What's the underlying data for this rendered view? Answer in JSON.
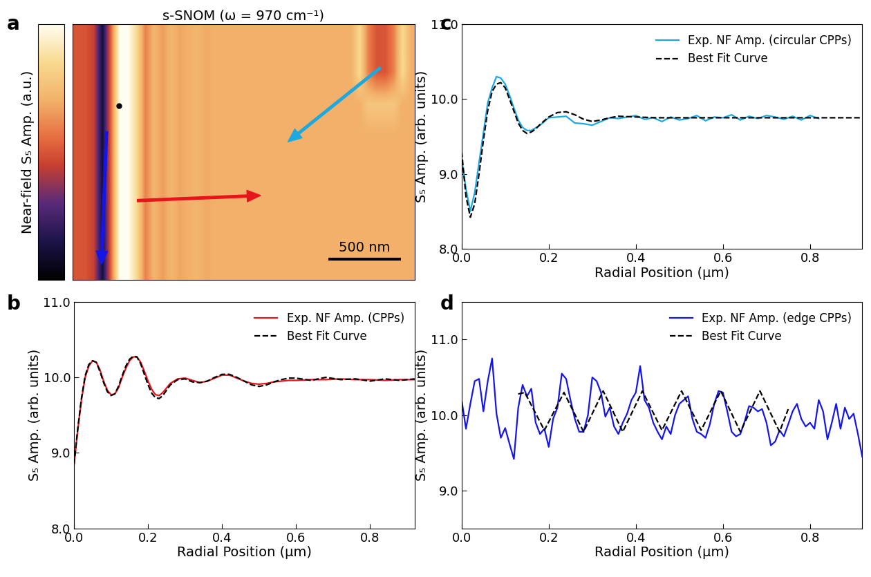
{
  "chart_data": [
    {
      "type": "heatmap",
      "panel": "a",
      "title": "s-SNOM (ω = 970 cm⁻¹)",
      "colorbar_label": "Near-field S₅ Amp. (a.u.)",
      "colorbar_range": [
        0,
        1
      ],
      "xlim": [
        0,
        2360
      ],
      "ylim": [
        1760,
        0
      ],
      "tick_labels": false,
      "scale_bar": {
        "length": 500,
        "label": "500 nm"
      },
      "values": [
        [
          0.5,
          0.5,
          0.45,
          0.12,
          0.55,
          1.0,
          1.0,
          0.85,
          0.6,
          0.72,
          0.66,
          0.72,
          0.68,
          0.7,
          0.72,
          0.69,
          0.7,
          0.7,
          0.7,
          0.7,
          0.7,
          0.7,
          0.7,
          0.7,
          0.7,
          0.7,
          0.7,
          0.7,
          0.7,
          0.7,
          0.7,
          0.7,
          0.7,
          0.85,
          0.6,
          0.5,
          0.5,
          0.6,
          0.85,
          0.7
        ],
        [
          0.5,
          0.5,
          0.45,
          0.12,
          0.55,
          1.0,
          1.0,
          0.85,
          0.6,
          0.72,
          0.66,
          0.72,
          0.68,
          0.7,
          0.72,
          0.69,
          0.7,
          0.7,
          0.7,
          0.7,
          0.7,
          0.7,
          0.7,
          0.7,
          0.7,
          0.7,
          0.7,
          0.7,
          0.7,
          0.7,
          0.7,
          0.7,
          0.7,
          0.85,
          0.6,
          0.5,
          0.5,
          0.6,
          0.85,
          0.7
        ],
        [
          0.5,
          0.5,
          0.45,
          0.12,
          0.55,
          1.0,
          1.0,
          0.85,
          0.6,
          0.72,
          0.66,
          0.72,
          0.68,
          0.7,
          0.72,
          0.69,
          0.7,
          0.7,
          0.7,
          0.7,
          0.7,
          0.7,
          0.7,
          0.7,
          0.7,
          0.7,
          0.7,
          0.7,
          0.7,
          0.7,
          0.7,
          0.7,
          0.7,
          0.7,
          0.78,
          0.78,
          0.78,
          0.78,
          0.7,
          0.7
        ],
        [
          0.5,
          0.5,
          0.45,
          0.12,
          0.55,
          1.0,
          1.0,
          0.85,
          0.6,
          0.72,
          0.66,
          0.72,
          0.68,
          0.7,
          0.72,
          0.69,
          0.7,
          0.7,
          0.7,
          0.7,
          0.7,
          0.7,
          0.7,
          0.7,
          0.7,
          0.7,
          0.7,
          0.7,
          0.7,
          0.7,
          0.7,
          0.7,
          0.7,
          0.7,
          0.7,
          0.7,
          0.7,
          0.7,
          0.7,
          0.7
        ],
        [
          0.5,
          0.5,
          0.45,
          0.12,
          0.55,
          1.0,
          1.0,
          0.85,
          0.6,
          0.72,
          0.66,
          0.72,
          0.68,
          0.7,
          0.72,
          0.69,
          0.7,
          0.7,
          0.7,
          0.7,
          0.7,
          0.7,
          0.7,
          0.7,
          0.7,
          0.7,
          0.7,
          0.7,
          0.7,
          0.7,
          0.7,
          0.7,
          0.7,
          0.7,
          0.7,
          0.7,
          0.7,
          0.7,
          0.7,
          0.7
        ],
        [
          0.5,
          0.5,
          0.45,
          0.12,
          0.55,
          1.0,
          1.0,
          0.85,
          0.6,
          0.72,
          0.66,
          0.72,
          0.68,
          0.7,
          0.72,
          0.69,
          0.7,
          0.7,
          0.7,
          0.7,
          0.7,
          0.7,
          0.7,
          0.7,
          0.7,
          0.7,
          0.7,
          0.7,
          0.7,
          0.7,
          0.7,
          0.7,
          0.7,
          0.7,
          0.7,
          0.7,
          0.7,
          0.7,
          0.7,
          0.7
        ],
        [
          0.5,
          0.5,
          0.45,
          0.12,
          0.55,
          1.0,
          1.0,
          0.85,
          0.6,
          0.72,
          0.66,
          0.72,
          0.68,
          0.7,
          0.72,
          0.69,
          0.7,
          0.7,
          0.7,
          0.7,
          0.7,
          0.7,
          0.7,
          0.7,
          0.7,
          0.7,
          0.7,
          0.7,
          0.7,
          0.7,
          0.7,
          0.7,
          0.7,
          0.7,
          0.7,
          0.7,
          0.7,
          0.7,
          0.7,
          0.7
        ],
        [
          0.5,
          0.5,
          0.45,
          0.12,
          0.55,
          1.0,
          1.0,
          0.85,
          0.6,
          0.72,
          0.66,
          0.72,
          0.68,
          0.7,
          0.72,
          0.69,
          0.7,
          0.7,
          0.7,
          0.7,
          0.7,
          0.7,
          0.7,
          0.7,
          0.7,
          0.7,
          0.7,
          0.7,
          0.7,
          0.7,
          0.7,
          0.7,
          0.7,
          0.7,
          0.7,
          0.7,
          0.7,
          0.7,
          0.7,
          0.7
        ]
      ]
    },
    {
      "type": "line",
      "panel": "b",
      "xlabel": "Radial Position (µm)",
      "ylabel": "S₅ Amp. (arb. units)",
      "xlim": [
        0,
        0.92
      ],
      "ylim": [
        8.0,
        11.0
      ],
      "xticks": [
        0.0,
        0.2,
        0.4,
        0.6,
        0.8
      ],
      "yticks": [
        8.0,
        9.0,
        10.0,
        11.0
      ],
      "legend": "upper right",
      "series": [
        {
          "name": "Exp. NF Amp. (CPPs)",
          "color": "#e8141c",
          "line_style": "solid",
          "x": [
            0.0,
            0.01,
            0.02,
            0.03,
            0.04,
            0.05,
            0.06,
            0.07,
            0.08,
            0.09,
            0.1,
            0.11,
            0.12,
            0.13,
            0.14,
            0.15,
            0.16,
            0.17,
            0.18,
            0.19,
            0.2,
            0.21,
            0.22,
            0.23,
            0.24,
            0.25,
            0.26,
            0.28,
            0.3,
            0.32,
            0.34,
            0.36,
            0.38,
            0.4,
            0.42,
            0.44,
            0.46,
            0.48,
            0.5,
            0.52,
            0.54,
            0.56,
            0.58,
            0.6,
            0.64,
            0.68,
            0.72,
            0.76,
            0.8,
            0.84,
            0.88,
            0.92
          ],
          "values": [
            8.85,
            9.3,
            9.7,
            10.0,
            10.15,
            10.22,
            10.2,
            10.1,
            9.95,
            9.83,
            9.77,
            9.78,
            9.86,
            10.0,
            10.12,
            10.22,
            10.27,
            10.27,
            10.2,
            10.08,
            9.95,
            9.84,
            9.77,
            9.76,
            9.8,
            9.86,
            9.92,
            9.98,
            9.99,
            9.96,
            9.93,
            9.95,
            9.99,
            10.03,
            10.03,
            9.99,
            9.95,
            9.92,
            9.91,
            9.92,
            9.94,
            9.95,
            9.96,
            9.96,
            9.97,
            9.97,
            9.98,
            9.97,
            9.97,
            9.96,
            9.97,
            9.97
          ]
        },
        {
          "name": "Best Fit Curve",
          "color": "#000000",
          "line_style": "dashed",
          "x": [
            0.0,
            0.01,
            0.02,
            0.03,
            0.04,
            0.05,
            0.06,
            0.07,
            0.08,
            0.09,
            0.1,
            0.11,
            0.12,
            0.13,
            0.14,
            0.15,
            0.16,
            0.17,
            0.18,
            0.19,
            0.2,
            0.21,
            0.22,
            0.23,
            0.24,
            0.25,
            0.26,
            0.28,
            0.3,
            0.32,
            0.34,
            0.36,
            0.38,
            0.4,
            0.42,
            0.44,
            0.46,
            0.48,
            0.5,
            0.52,
            0.54,
            0.56,
            0.58,
            0.6,
            0.64,
            0.68,
            0.72,
            0.76,
            0.8,
            0.84,
            0.88,
            0.92
          ],
          "values": [
            8.85,
            9.32,
            9.72,
            10.02,
            10.17,
            10.22,
            10.2,
            10.08,
            9.93,
            9.81,
            9.76,
            9.78,
            9.88,
            10.02,
            10.15,
            10.24,
            10.28,
            10.27,
            10.18,
            10.04,
            9.9,
            9.79,
            9.73,
            9.72,
            9.76,
            9.83,
            9.9,
            9.97,
            9.98,
            9.94,
            9.93,
            9.95,
            10.0,
            10.04,
            10.04,
            10.0,
            9.95,
            9.9,
            9.88,
            9.9,
            9.94,
            9.97,
            9.99,
            9.99,
            9.96,
            10.0,
            9.97,
            9.98,
            9.95,
            9.98,
            9.96,
            9.98
          ]
        }
      ]
    },
    {
      "type": "line",
      "panel": "c",
      "xlabel": "Radial Position (µm)",
      "ylabel": "S₅ Amp. (arb. units)",
      "xlim": [
        0,
        0.92
      ],
      "ylim": [
        8.0,
        11.0
      ],
      "xticks": [
        0.0,
        0.2,
        0.4,
        0.6,
        0.8
      ],
      "yticks": [
        8.0,
        9.0,
        10.0,
        11.0
      ],
      "legend": "upper right",
      "series": [
        {
          "name": "Exp. NF Amp. (circular CPPs)",
          "color": "#1ba9e0",
          "line_style": "solid",
          "x": [
            0.0,
            0.01,
            0.02,
            0.03,
            0.04,
            0.05,
            0.06,
            0.07,
            0.08,
            0.09,
            0.1,
            0.11,
            0.12,
            0.13,
            0.14,
            0.15,
            0.16,
            0.18,
            0.2,
            0.22,
            0.24,
            0.26,
            0.28,
            0.3,
            0.32,
            0.34,
            0.36,
            0.38,
            0.4,
            0.42,
            0.44,
            0.46,
            0.48,
            0.5,
            0.52,
            0.54,
            0.56,
            0.58,
            0.6,
            0.62,
            0.64,
            0.66,
            0.68,
            0.7,
            0.72,
            0.74,
            0.76,
            0.78,
            0.8,
            0.82
          ],
          "values": [
            9.2,
            8.8,
            8.5,
            8.75,
            9.15,
            9.55,
            9.95,
            10.15,
            10.3,
            10.28,
            10.2,
            10.05,
            9.88,
            9.72,
            9.62,
            9.58,
            9.58,
            9.65,
            9.75,
            9.76,
            9.77,
            9.68,
            9.67,
            9.65,
            9.7,
            9.75,
            9.74,
            9.76,
            9.78,
            9.73,
            9.75,
            9.7,
            9.76,
            9.72,
            9.74,
            9.78,
            9.71,
            9.76,
            9.75,
            9.79,
            9.72,
            9.77,
            9.74,
            9.78,
            9.76,
            9.73,
            9.77,
            9.72,
            9.78,
            9.74
          ]
        },
        {
          "name": "Best Fit Curve",
          "color": "#000000",
          "line_style": "dashed",
          "x": [
            0.0,
            0.01,
            0.02,
            0.03,
            0.04,
            0.05,
            0.06,
            0.07,
            0.08,
            0.09,
            0.1,
            0.11,
            0.12,
            0.13,
            0.14,
            0.15,
            0.16,
            0.17,
            0.18,
            0.2,
            0.22,
            0.24,
            0.26,
            0.28,
            0.3,
            0.32,
            0.34,
            0.36,
            0.4,
            0.45,
            0.5,
            0.6,
            0.7,
            0.8,
            0.92
          ],
          "values": [
            9.3,
            8.7,
            8.42,
            8.6,
            9.0,
            9.45,
            9.85,
            10.1,
            10.2,
            10.22,
            10.15,
            10.0,
            9.84,
            9.68,
            9.58,
            9.54,
            9.56,
            9.6,
            9.66,
            9.76,
            9.82,
            9.83,
            9.79,
            9.73,
            9.7,
            9.72,
            9.75,
            9.77,
            9.76,
            9.75,
            9.75,
            9.75,
            9.75,
            9.75,
            9.75
          ]
        }
      ]
    },
    {
      "type": "line",
      "panel": "d",
      "xlabel": "Radial Position (µm)",
      "ylabel": "S₅ Amp. (arb. units)",
      "xlim": [
        0,
        0.92
      ],
      "ylim": [
        8.5,
        11.5
      ],
      "xticks": [
        0.0,
        0.2,
        0.4,
        0.6,
        0.8
      ],
      "yticks": [
        9.0,
        10.0,
        11.0
      ],
      "legend": "upper right",
      "series": [
        {
          "name": "Exp. NF Amp. (edge CPPs)",
          "color": "#1515e8",
          "line_style": "solid",
          "x": [
            0.0,
            0.01,
            0.02,
            0.03,
            0.04,
            0.05,
            0.06,
            0.07,
            0.08,
            0.09,
            0.1,
            0.11,
            0.12,
            0.13,
            0.14,
            0.15,
            0.16,
            0.17,
            0.18,
            0.19,
            0.2,
            0.21,
            0.22,
            0.23,
            0.24,
            0.25,
            0.26,
            0.27,
            0.28,
            0.29,
            0.3,
            0.31,
            0.32,
            0.33,
            0.34,
            0.35,
            0.36,
            0.37,
            0.38,
            0.39,
            0.4,
            0.41,
            0.42,
            0.43,
            0.44,
            0.45,
            0.46,
            0.47,
            0.48,
            0.49,
            0.5,
            0.51,
            0.52,
            0.53,
            0.54,
            0.55,
            0.56,
            0.57,
            0.58,
            0.59,
            0.6,
            0.61,
            0.62,
            0.63,
            0.64,
            0.65,
            0.66,
            0.67,
            0.68,
            0.69,
            0.7,
            0.71,
            0.72,
            0.73,
            0.74,
            0.75,
            0.76,
            0.77,
            0.78,
            0.79,
            0.8,
            0.81,
            0.82,
            0.83,
            0.84,
            0.85,
            0.86,
            0.87,
            0.88,
            0.89,
            0.9,
            0.91,
            0.92
          ],
          "values": [
            10.2,
            9.82,
            10.15,
            10.45,
            10.48,
            10.05,
            10.45,
            10.75,
            10.02,
            9.7,
            9.83,
            9.62,
            9.42,
            10.1,
            10.4,
            10.25,
            10.35,
            9.9,
            9.75,
            9.82,
            9.58,
            9.95,
            10.1,
            10.55,
            10.48,
            10.2,
            9.95,
            9.78,
            9.78,
            10.0,
            10.5,
            10.45,
            10.3,
            9.98,
            10.1,
            9.85,
            9.75,
            9.9,
            10.02,
            10.2,
            10.3,
            10.65,
            10.2,
            10.1,
            9.9,
            9.78,
            9.68,
            9.85,
            9.75,
            10.0,
            10.15,
            10.2,
            10.25,
            9.95,
            9.78,
            9.75,
            9.7,
            9.88,
            10.15,
            10.32,
            10.3,
            10.05,
            9.78,
            9.72,
            9.75,
            9.92,
            10.12,
            10.1,
            10.05,
            10.08,
            9.9,
            9.6,
            9.65,
            9.8,
            9.72,
            9.88,
            10.05,
            10.15,
            9.95,
            9.85,
            9.9,
            9.82,
            10.2,
            10.05,
            9.68,
            9.9,
            10.15,
            9.82,
            10.1,
            9.95,
            10.02,
            9.75,
            9.45
          ]
        },
        {
          "name": "Best Fit Curve",
          "color": "#000000",
          "line_style": "dashed",
          "x": [
            0.13,
            0.145,
            0.1675,
            0.19,
            0.2125,
            0.235,
            0.2575,
            0.28,
            0.3025,
            0.325,
            0.3475,
            0.37,
            0.3925,
            0.415,
            0.4375,
            0.46,
            0.4825,
            0.505,
            0.5275,
            0.55,
            0.5725,
            0.595,
            0.6175,
            0.64,
            0.6625,
            0.685,
            0.7075,
            0.73,
            0.75
          ],
          "values": [
            10.28,
            10.3,
            10.05,
            9.8,
            10.05,
            10.3,
            10.04,
            9.78,
            10.05,
            10.32,
            10.05,
            9.78,
            10.05,
            10.32,
            10.06,
            9.8,
            10.06,
            10.32,
            10.06,
            9.8,
            10.06,
            10.32,
            10.05,
            9.78,
            10.05,
            10.32,
            10.05,
            9.78,
            10.08
          ]
        }
      ]
    }
  ]
}
